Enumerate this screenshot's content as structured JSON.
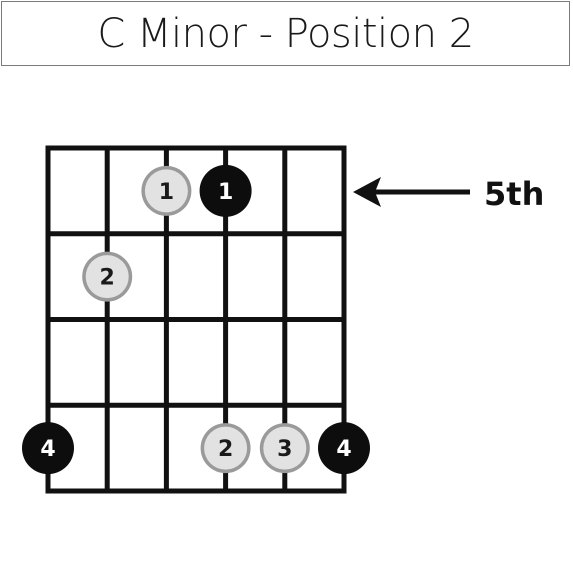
{
  "title": "C Minor - Position 2",
  "fret_marker": {
    "label": "5th",
    "arrow_icon": "left-arrow-icon"
  },
  "fretboard": {
    "strings": 6,
    "frets": 4
  },
  "colors": {
    "line": "#111111",
    "root_fill": "#0d0d0d",
    "root_text": "#ffffff",
    "note_fill": "#e2e2e2",
    "note_ring": "#9a9a9a",
    "note_text": "#1a1a1a"
  },
  "notes": [
    {
      "string": 3,
      "fret": 1,
      "label": "1",
      "root": false
    },
    {
      "string": 4,
      "fret": 1,
      "label": "1",
      "root": true
    },
    {
      "string": 2,
      "fret": 2,
      "label": "2",
      "root": false
    },
    {
      "string": 1,
      "fret": 4,
      "label": "4",
      "root": true
    },
    {
      "string": 4,
      "fret": 4,
      "label": "2",
      "root": false
    },
    {
      "string": 5,
      "fret": 4,
      "label": "3",
      "root": false
    },
    {
      "string": 6,
      "fret": 4,
      "label": "4",
      "root": true
    }
  ]
}
